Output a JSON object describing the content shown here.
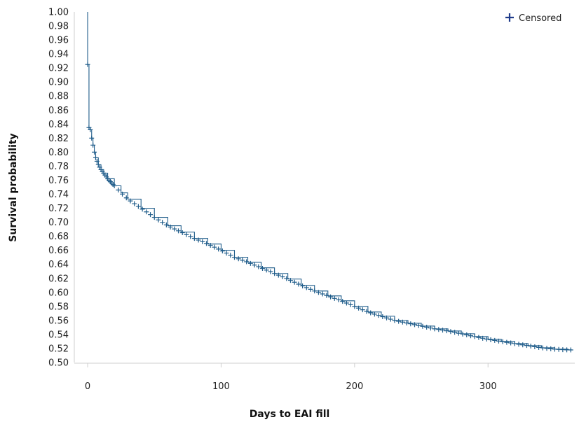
{
  "chart_data": {
    "type": "line",
    "title": "",
    "xlabel": "Days to EAI fill",
    "ylabel": "Survival probability",
    "xlim": [
      -10,
      365
    ],
    "ylim": [
      0.5,
      1.0
    ],
    "x_ticks": [
      0,
      100,
      200,
      300
    ],
    "y_ticks": [
      0.5,
      0.52,
      0.54,
      0.56,
      0.58,
      0.6,
      0.62,
      0.64,
      0.66,
      0.68,
      0.7,
      0.72,
      0.74,
      0.76,
      0.78,
      0.8,
      0.82,
      0.84,
      0.86,
      0.88,
      0.9,
      0.92,
      0.94,
      0.96,
      0.98,
      1.0
    ],
    "legend": {
      "placement": "top-right",
      "entries": [
        "Censored"
      ]
    },
    "grid": false,
    "series_color": "#1f5c8a",
    "legend_marker_color": "#1f3b8a",
    "series": [
      {
        "values": [
          [
            0,
            1.0
          ],
          [
            0,
            0.925
          ],
          [
            1,
            0.835
          ],
          [
            2,
            0.832
          ],
          [
            3,
            0.82
          ],
          [
            4,
            0.81
          ],
          [
            5,
            0.8
          ],
          [
            6,
            0.792
          ],
          [
            8,
            0.782
          ],
          [
            10,
            0.775
          ],
          [
            12,
            0.77
          ],
          [
            15,
            0.762
          ],
          [
            20,
            0.752
          ],
          [
            25,
            0.742
          ],
          [
            30,
            0.733
          ],
          [
            40,
            0.72
          ],
          [
            50,
            0.707
          ],
          [
            60,
            0.695
          ],
          [
            70,
            0.686
          ],
          [
            80,
            0.677
          ],
          [
            90,
            0.669
          ],
          [
            100,
            0.66
          ],
          [
            110,
            0.65
          ],
          [
            120,
            0.643
          ],
          [
            130,
            0.635
          ],
          [
            140,
            0.627
          ],
          [
            150,
            0.619
          ],
          [
            160,
            0.61
          ],
          [
            170,
            0.602
          ],
          [
            180,
            0.595
          ],
          [
            190,
            0.588
          ],
          [
            200,
            0.58
          ],
          [
            210,
            0.572
          ],
          [
            220,
            0.566
          ],
          [
            230,
            0.56
          ],
          [
            240,
            0.556
          ],
          [
            250,
            0.552
          ],
          [
            260,
            0.548
          ],
          [
            270,
            0.545
          ],
          [
            280,
            0.541
          ],
          [
            290,
            0.537
          ],
          [
            300,
            0.533
          ],
          [
            310,
            0.53
          ],
          [
            320,
            0.527
          ],
          [
            330,
            0.524
          ],
          [
            340,
            0.521
          ],
          [
            350,
            0.519
          ],
          [
            360,
            0.518
          ],
          [
            363,
            0.518
          ]
        ]
      }
    ]
  }
}
